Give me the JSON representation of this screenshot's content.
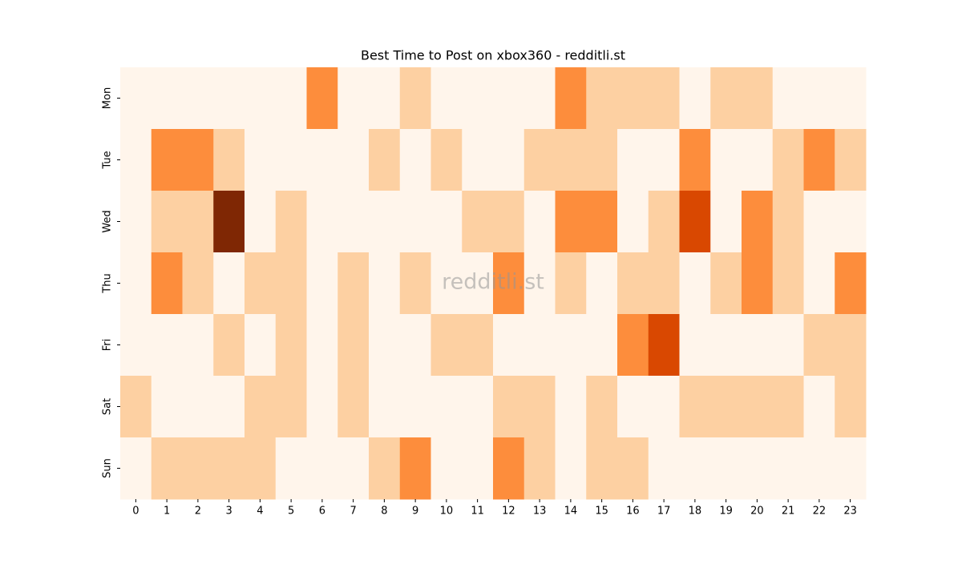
{
  "chart_data": {
    "type": "heatmap",
    "title": "Best Time to Post on xbox360 - redditli.st",
    "watermark": "redditli.st",
    "x": [
      "0",
      "1",
      "2",
      "3",
      "4",
      "5",
      "6",
      "7",
      "8",
      "9",
      "10",
      "11",
      "12",
      "13",
      "14",
      "15",
      "16",
      "17",
      "18",
      "19",
      "20",
      "21",
      "22",
      "23"
    ],
    "y": [
      "Mon",
      "Tue",
      "Wed",
      "Thu",
      "Fri",
      "Sat",
      "Sun"
    ],
    "colors": [
      "#fff5eb",
      "#fdd0a2",
      "#fd8d3c",
      "#d94801",
      "#7f2704"
    ],
    "values": [
      [
        0,
        0,
        0,
        0,
        0,
        0,
        2,
        0,
        0,
        1,
        0,
        0,
        0,
        0,
        2,
        1,
        1,
        1,
        0,
        1,
        1,
        0,
        0,
        0
      ],
      [
        0,
        2,
        2,
        1,
        0,
        0,
        0,
        0,
        1,
        0,
        1,
        0,
        0,
        1,
        1,
        1,
        0,
        0,
        2,
        0,
        0,
        1,
        2,
        1
      ],
      [
        0,
        1,
        1,
        4,
        0,
        1,
        0,
        0,
        0,
        0,
        0,
        1,
        1,
        0,
        2,
        2,
        0,
        1,
        3,
        0,
        2,
        1,
        0,
        0
      ],
      [
        0,
        2,
        1,
        0,
        1,
        1,
        0,
        1,
        0,
        1,
        0,
        0,
        2,
        0,
        1,
        0,
        1,
        1,
        0,
        1,
        2,
        1,
        0,
        2
      ],
      [
        0,
        0,
        0,
        1,
        0,
        1,
        0,
        1,
        0,
        0,
        1,
        1,
        0,
        0,
        0,
        0,
        2,
        3,
        0,
        0,
        0,
        0,
        1,
        1
      ],
      [
        1,
        0,
        0,
        0,
        1,
        1,
        0,
        1,
        0,
        0,
        0,
        0,
        1,
        1,
        0,
        1,
        0,
        0,
        1,
        1,
        1,
        1,
        0,
        1
      ],
      [
        0,
        1,
        1,
        1,
        1,
        0,
        0,
        0,
        1,
        2,
        0,
        0,
        2,
        1,
        0,
        1,
        1,
        0,
        0,
        0,
        0,
        0,
        0,
        0
      ]
    ]
  }
}
